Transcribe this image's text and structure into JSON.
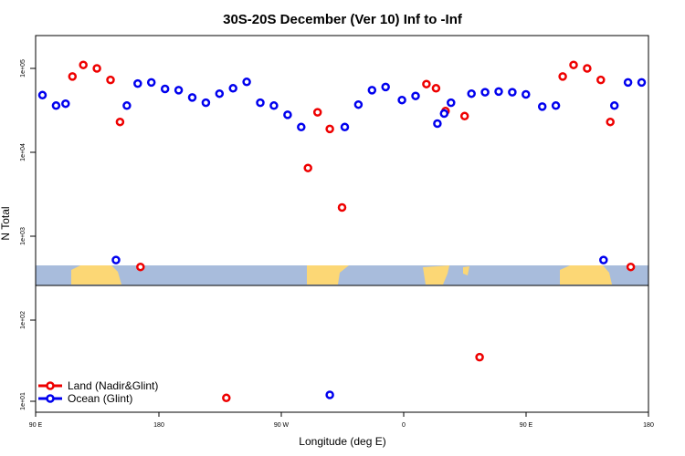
{
  "chart_data": {
    "type": "scatter",
    "title": "30S-20S December (Ver 10)   Inf to -Inf",
    "xlabel": "Longitude (deg E)",
    "ylabel": "N Total",
    "x_tick_labels": [
      "90 E",
      "180",
      "90 W",
      "0",
      "90 E",
      "180"
    ],
    "x_tick_values": [
      0,
      90,
      180,
      270,
      360,
      450
    ],
    "xlim": [
      0,
      450
    ],
    "upper_panel": {
      "yscale": "log",
      "y_tick_labels": [
        "1e+03",
        "1e+04",
        "1e+05"
      ],
      "y_tick_values": [
        1000,
        10000,
        100000
      ],
      "series": [
        {
          "name": "Land (Nadir&Glint)",
          "color": "#ee0000",
          "points": [
            [
              27,
              80000
            ],
            [
              35,
              110000
            ],
            [
              45,
              100000
            ],
            [
              55,
              73000
            ],
            [
              62,
              23000
            ],
            [
              77,
              430
            ],
            [
              200,
              6500
            ],
            [
              207,
              30000
            ],
            [
              216,
              19000
            ],
            [
              225,
              2200
            ],
            [
              287,
              65000
            ],
            [
              294,
              58000
            ],
            [
              301,
              31000
            ],
            [
              315,
              27000
            ],
            [
              387,
              80000
            ],
            [
              395,
              110000
            ],
            [
              405,
              100000
            ],
            [
              415,
              73000
            ],
            [
              422,
              23000
            ],
            [
              437,
              430
            ]
          ]
        },
        {
          "name": "Ocean (Glint)",
          "color": "#0000ee",
          "points": [
            [
              5,
              48000
            ],
            [
              15,
              36000
            ],
            [
              22,
              38000
            ],
            [
              59,
              520
            ],
            [
              67,
              36000
            ],
            [
              75,
              66000
            ],
            [
              85,
              68000
            ],
            [
              95,
              57000
            ],
            [
              105,
              55000
            ],
            [
              115,
              45000
            ],
            [
              125,
              39000
            ],
            [
              135,
              50000
            ],
            [
              145,
              58000
            ],
            [
              155,
              69000
            ],
            [
              165,
              39000
            ],
            [
              175,
              36000
            ],
            [
              185,
              28000
            ],
            [
              195,
              20000
            ],
            [
              227,
              20000
            ],
            [
              237,
              37000
            ],
            [
              247,
              55000
            ],
            [
              257,
              60000
            ],
            [
              269,
              42000
            ],
            [
              279,
              47000
            ],
            [
              295,
              22000
            ],
            [
              300,
              29000
            ],
            [
              305,
              39000
            ],
            [
              320,
              50000
            ],
            [
              330,
              52000
            ],
            [
              340,
              53000
            ],
            [
              350,
              52000
            ],
            [
              360,
              49000
            ],
            [
              372,
              35000
            ],
            [
              382,
              36000
            ],
            [
              417,
              520
            ],
            [
              425,
              36000
            ],
            [
              435,
              68000
            ],
            [
              445,
              68000
            ]
          ]
        }
      ]
    },
    "lower_panel": {
      "yscale": "log",
      "y_tick_labels": [
        "1e+01",
        "1e+02"
      ],
      "y_tick_values": [
        10,
        100
      ],
      "series": [
        {
          "name": "Land (Nadir&Glint)",
          "color": "#ee0000",
          "points": [
            [
              140,
              11
            ],
            [
              326,
              35
            ]
          ]
        },
        {
          "name": "Ocean (Glint)",
          "color": "#0000ee",
          "points": [
            [
              216,
              12
            ]
          ]
        }
      ]
    },
    "legend": {
      "position": "bottom-left",
      "entries": [
        {
          "label": "Land (Nadir&Glint)",
          "color": "#ee0000"
        },
        {
          "label": "Ocean (Glint)",
          "color": "#0000ee"
        }
      ]
    },
    "map_strip_colors": {
      "ocean": "#a8bcdc",
      "land": "#fcd775"
    },
    "grid": false
  }
}
